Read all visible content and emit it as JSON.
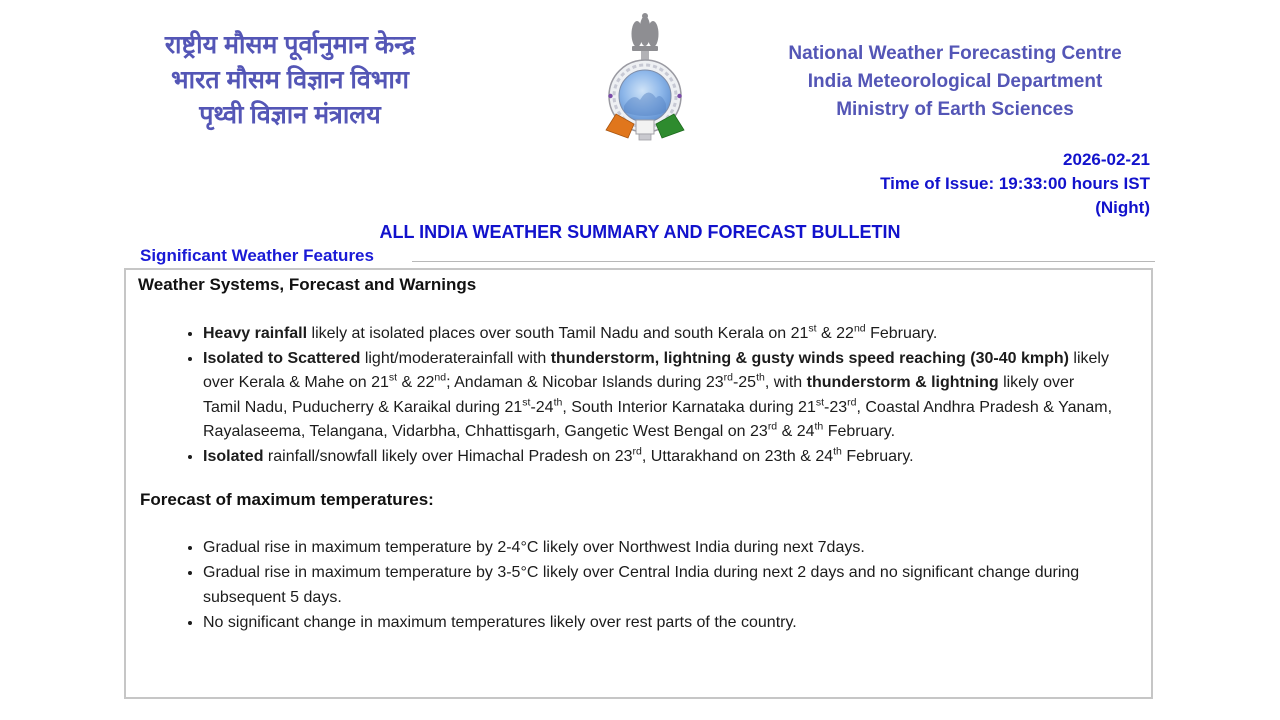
{
  "header": {
    "org_hindi": {
      "line1": "राष्ट्रीय मौसम पूर्वानुमान केन्द्र",
      "line2": "भारत मौसम विज्ञान विभाग",
      "line3": "पृथ्वी विज्ञान मंत्रालय"
    },
    "org_english": {
      "line1": "National Weather Forecasting Centre",
      "line2": "India Meteorological Department",
      "line3": "Ministry of Earth Sciences"
    },
    "logo_icon": "imd-emblem-icon (ashoka-lion-capital over blue medallion with india-tricolor ribbon)",
    "issue": {
      "date": "2026-02-21",
      "time_line": "Time of Issue: 19:33:00 hours IST",
      "session": "(Night)"
    }
  },
  "title": "ALL INDIA WEATHER SUMMARY AND FORECAST BULLETIN",
  "section_link": "Significant Weather Features",
  "bulletin": {
    "heading": "Weather Systems, Forecast and Warnings",
    "warnings": [
      "**Heavy rainfall** likely at isolated places over south Tamil Nadu and south Kerala on 21^st^ & 22^nd^ February.",
      "**Isolated to Scattered** light/moderaterainfall with **thunderstorm, lightning & gusty winds speed reaching (30-40 kmph)** likely over Kerala & Mahe on 21^st^ & 22^nd^; Andaman & Nicobar Islands during 23^rd^-25^th^, with **thunderstorm & lightning** likely over Tamil Nadu, Puducherry & Karaikal during 21^st^-24^th^, South Interior Karnataka during 21^st^-23^rd^, Coastal Andhra Pradesh & Yanam, Rayalaseema, Telangana, Vidarbha, Chhattisgarh, Gangetic West Bengal on 23^rd^ & 24^th^ February.",
      "**Isolated** rainfall/snowfall likely over Himachal Pradesh on 23^rd^, Uttarakhand on 23th & 24^th^ February."
    ],
    "max_temp_heading": "Forecast of maximum temperatures:",
    "max_temp": [
      "Gradual rise in maximum temperature by 2-4°C likely over Northwest India during next 7days.",
      "Gradual rise in maximum temperature by 3-5°C likely over Central India during next 2 days and no significant change during subsequent 5 days.",
      "No significant change in maximum temperatures likely over rest parts of the country."
    ]
  },
  "colors": {
    "header_purple": "#5456b6",
    "link_blue": "#1212cc",
    "body_text": "#1c1c1c",
    "box_border": "#c6c6c6",
    "logo_saffron": "#e0761c",
    "logo_green": "#2e8b2e",
    "logo_blue": "#6d9fdd"
  }
}
